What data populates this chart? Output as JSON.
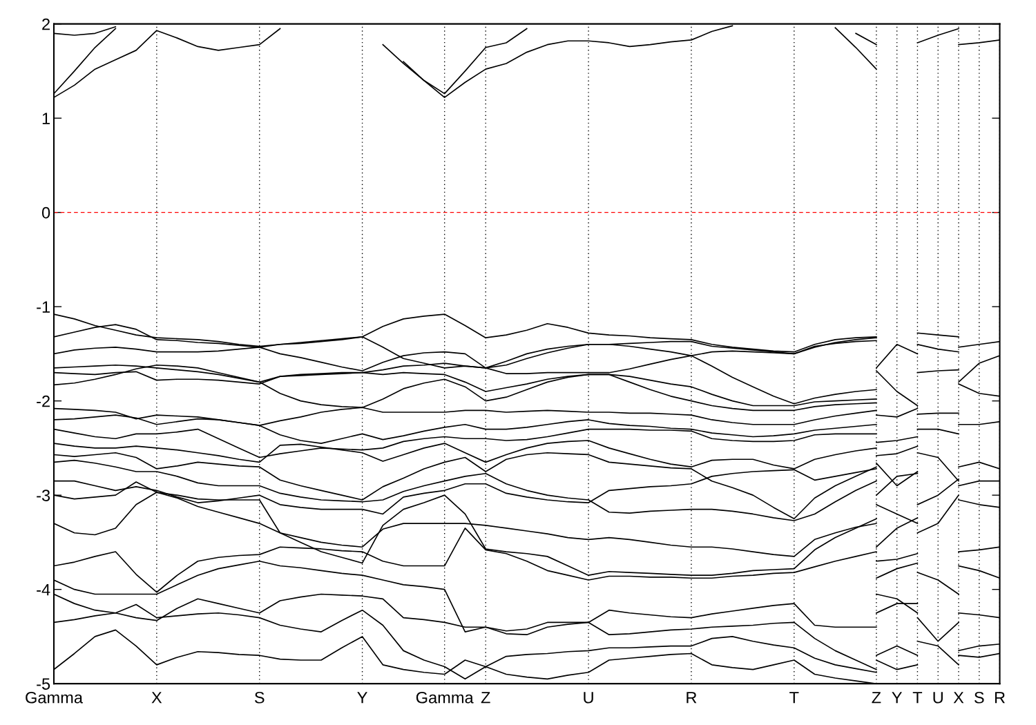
{
  "chart_data": {
    "type": "line",
    "categories": [
      "Gamma",
      null,
      null,
      null,
      null,
      "X",
      null,
      null,
      null,
      null,
      "S",
      null,
      null,
      null,
      null,
      "Y",
      null,
      null,
      null,
      "Gamma",
      null,
      "Z",
      null,
      null,
      null,
      null,
      "U",
      null,
      null,
      null,
      null,
      "R",
      null,
      null,
      null,
      null,
      "T",
      null,
      null,
      null,
      "Z",
      "Y",
      "T",
      "U",
      "X",
      "S",
      "R"
    ],
    "ylim": [
      -5,
      2
    ],
    "yticks": [
      -5,
      -4,
      -3,
      -2,
      -1,
      0,
      1,
      2
    ],
    "grid": "x",
    "marker": "none",
    "line_style": "solid",
    "ref_lines": [
      {
        "axis": "y",
        "value": 0,
        "color": "#ff0000",
        "line_style": "dashed",
        "label": null
      }
    ],
    "series": [
      {
        "color": "#000000",
        "values": [
          1.22,
          1.35,
          1.52,
          1.62,
          1.72,
          1.93,
          1.85,
          1.76,
          1.72,
          1.75,
          1.78,
          1.95,
          null,
          null,
          null,
          null,
          null,
          1.6,
          1.4,
          1.22,
          1.38,
          1.52,
          1.58,
          1.7,
          1.78,
          1.82,
          1.82,
          1.8,
          1.76,
          1.78,
          1.81,
          1.83,
          1.92,
          1.98,
          null,
          null,
          null,
          null,
          1.96,
          1.75,
          1.52,
          null,
          1.8,
          1.88,
          1.95,
          null,
          null
        ]
      },
      {
        "color": "#000000",
        "values": [
          1.26,
          1.5,
          1.75,
          1.95,
          null,
          null,
          null,
          null,
          null,
          null,
          null,
          null,
          null,
          null,
          null,
          null,
          1.78,
          1.58,
          1.4,
          1.26,
          1.5,
          1.75,
          1.8,
          1.95,
          null,
          null,
          null,
          null,
          null,
          null,
          null,
          null,
          null,
          null,
          null,
          null,
          null,
          null,
          null,
          1.9,
          1.78,
          null,
          null,
          null,
          null,
          null,
          null
        ]
      },
      {
        "color": "#000000",
        "values": [
          1.9,
          1.88,
          1.9,
          1.97,
          null,
          null,
          null,
          null,
          null,
          null,
          null,
          null,
          null,
          null,
          null,
          null,
          null,
          null,
          null,
          null,
          null,
          null,
          null,
          null,
          null,
          null,
          null,
          null,
          null,
          null,
          null,
          null,
          null,
          null,
          null,
          null,
          null,
          null,
          null,
          null,
          null,
          null,
          null,
          null,
          null,
          null,
          null
        ]
      },
      {
        "color": "#000000",
        "values": [
          -1.08,
          -1.13,
          -1.2,
          -1.25,
          -1.3,
          -1.33,
          -1.34,
          -1.35,
          -1.37,
          -1.4,
          -1.42,
          -1.4,
          -1.38,
          -1.36,
          -1.34,
          -1.32,
          -1.21,
          -1.13,
          -1.1,
          -1.08,
          -1.2,
          -1.33,
          -1.3,
          -1.25,
          -1.18,
          -1.22,
          -1.28,
          -1.3,
          -1.31,
          -1.33,
          -1.34,
          -1.35,
          -1.4,
          -1.43,
          -1.45,
          -1.47,
          -1.48,
          -1.4,
          -1.35,
          -1.33,
          -1.32,
          null,
          -1.28,
          -1.3,
          -1.32,
          null,
          null
        ]
      },
      {
        "color": "#000000",
        "values": [
          -1.32,
          -1.27,
          -1.22,
          -1.19,
          -1.24,
          -1.35,
          -1.36,
          -1.38,
          -1.39,
          -1.41,
          -1.43,
          -1.5,
          -1.54,
          -1.59,
          -1.64,
          -1.68,
          -1.59,
          -1.52,
          -1.49,
          -1.48,
          -1.5,
          -1.65,
          -1.62,
          -1.55,
          -1.49,
          -1.44,
          -1.4,
          -1.4,
          -1.39,
          -1.38,
          -1.37,
          -1.37,
          -1.42,
          -1.44,
          -1.46,
          -1.48,
          -1.5,
          -1.43,
          -1.38,
          -1.35,
          -1.33,
          null,
          -1.4,
          -1.45,
          -1.48,
          null,
          null
        ]
      },
      {
        "color": "#000000",
        "values": [
          -1.5,
          -1.46,
          -1.44,
          -1.43,
          -1.45,
          -1.48,
          -1.48,
          -1.48,
          -1.47,
          -1.45,
          -1.43,
          -1.4,
          -1.39,
          -1.37,
          -1.35,
          -1.32,
          -1.43,
          -1.55,
          -1.6,
          -1.65,
          -1.63,
          -1.65,
          -1.58,
          -1.5,
          -1.45,
          -1.42,
          -1.4,
          -1.4,
          -1.42,
          -1.45,
          -1.48,
          -1.52,
          -1.63,
          -1.75,
          -1.85,
          -1.95,
          -2.03,
          -1.97,
          -1.93,
          -1.9,
          -1.88,
          null,
          -1.7,
          -1.68,
          -1.67,
          null,
          null
        ]
      },
      {
        "color": "#000000",
        "values": [
          -1.65,
          -1.64,
          -1.63,
          -1.62,
          -1.63,
          -1.65,
          -1.67,
          -1.69,
          -1.72,
          -1.76,
          -1.8,
          -1.74,
          -1.73,
          -1.72,
          -1.71,
          -1.7,
          -1.67,
          -1.63,
          -1.62,
          -1.6,
          -1.63,
          -1.65,
          -1.71,
          -1.71,
          -1.7,
          -1.7,
          -1.7,
          -1.7,
          -1.66,
          -1.61,
          -1.56,
          -1.52,
          -1.48,
          -1.47,
          -1.48,
          -1.49,
          -1.5,
          -1.42,
          -1.39,
          -1.37,
          -1.36,
          null,
          null,
          null,
          null,
          null,
          null
        ]
      },
      {
        "color": "#000000",
        "values": [
          -1.7,
          -1.71,
          -1.72,
          -1.7,
          -1.69,
          -1.78,
          -1.77,
          -1.77,
          -1.78,
          -1.8,
          -1.82,
          -1.74,
          -1.72,
          -1.71,
          -1.7,
          -1.7,
          -1.72,
          -1.7,
          -1.71,
          -1.72,
          -1.8,
          -1.9,
          -1.86,
          -1.82,
          -1.77,
          -1.74,
          -1.72,
          -1.72,
          -1.74,
          -1.78,
          -1.82,
          -1.85,
          -1.93,
          -2.0,
          -2.05,
          -2.05,
          -2.05,
          -2.01,
          -2.0,
          -1.99,
          -1.98,
          null,
          null,
          null,
          null,
          null,
          null
        ]
      },
      {
        "color": "#000000",
        "values": [
          -1.83,
          -1.81,
          -1.77,
          -1.72,
          -1.66,
          -1.62,
          -1.63,
          -1.65,
          -1.7,
          -1.75,
          -1.8,
          -1.92,
          -2.0,
          -2.04,
          -2.06,
          -2.07,
          -1.98,
          -1.87,
          -1.81,
          -1.77,
          -1.85,
          -2.0,
          -1.96,
          -1.88,
          -1.8,
          -1.75,
          -1.72,
          -1.72,
          -1.8,
          -1.88,
          -1.95,
          -2.0,
          -2.05,
          -2.08,
          -2.1,
          -2.1,
          -2.1,
          -2.06,
          -2.04,
          -2.03,
          -2.02,
          null,
          null,
          null,
          null,
          null,
          null
        ]
      },
      {
        "color": "#000000",
        "values": [
          -2.08,
          -2.09,
          -2.1,
          -2.12,
          -2.19,
          -2.15,
          -2.16,
          -2.17,
          -2.2,
          -2.23,
          -2.26,
          -2.21,
          -2.17,
          -2.12,
          -2.09,
          -2.07,
          -2.12,
          -2.12,
          -2.12,
          -2.12,
          -2.1,
          -2.1,
          -2.12,
          -2.11,
          -2.1,
          -2.11,
          -2.12,
          -2.12,
          -2.13,
          -2.13,
          -2.14,
          -2.15,
          -2.2,
          -2.23,
          -2.25,
          -2.25,
          -2.25,
          -2.2,
          -2.16,
          -2.13,
          -2.1,
          null,
          -2.14,
          -2.13,
          -2.13,
          null,
          null
        ]
      },
      {
        "color": "#000000",
        "values": [
          -2.2,
          -2.19,
          -2.17,
          -2.15,
          -2.18,
          -2.25,
          -2.22,
          -2.19,
          -2.2,
          -2.23,
          -2.26,
          -2.36,
          -2.42,
          -2.45,
          -2.4,
          -2.35,
          -2.41,
          -2.37,
          -2.32,
          -2.28,
          -2.25,
          -2.3,
          -2.3,
          -2.28,
          -2.25,
          -2.22,
          -2.2,
          -2.24,
          -2.26,
          -2.27,
          -2.29,
          -2.3,
          -2.34,
          -2.36,
          -2.38,
          -2.37,
          -2.35,
          -2.31,
          -2.29,
          -2.27,
          -2.25,
          null,
          -2.3,
          -2.3,
          -2.35,
          null,
          null
        ]
      },
      {
        "color": "#000000",
        "values": [
          -2.3,
          -2.34,
          -2.38,
          -2.4,
          -2.35,
          -2.35,
          -2.33,
          -2.3,
          -2.4,
          -2.5,
          -2.6,
          -2.56,
          -2.53,
          -2.5,
          -2.51,
          -2.52,
          -2.5,
          -2.43,
          -2.4,
          -2.38,
          -2.4,
          -2.4,
          -2.42,
          -2.41,
          -2.38,
          -2.34,
          -2.3,
          -2.3,
          -2.3,
          -2.31,
          -2.31,
          -2.32,
          -2.4,
          -2.42,
          -2.43,
          -2.43,
          -2.42,
          -2.36,
          -2.35,
          -2.35,
          -2.35,
          null,
          -2.55,
          -2.6,
          -2.85,
          null,
          null
        ]
      },
      {
        "color": "#000000",
        "values": [
          -2.45,
          -2.48,
          -2.5,
          -2.5,
          -2.48,
          -2.5,
          -2.52,
          -2.55,
          -2.58,
          -2.62,
          -2.65,
          -2.47,
          -2.46,
          -2.49,
          -2.52,
          -2.55,
          -2.64,
          -2.57,
          -2.5,
          -2.45,
          -2.55,
          -2.65,
          -2.57,
          -2.5,
          -2.45,
          -2.43,
          -2.42,
          -2.5,
          -2.56,
          -2.62,
          -2.67,
          -2.7,
          -2.63,
          -2.62,
          -2.62,
          -2.68,
          -2.72,
          -2.62,
          -2.57,
          -2.53,
          -2.5,
          null,
          -3.1,
          -3.0,
          -2.83,
          null,
          null
        ]
      },
      {
        "color": "#000000",
        "values": [
          -2.57,
          -2.59,
          -2.57,
          -2.55,
          -2.6,
          -2.72,
          -2.69,
          -2.65,
          -2.67,
          -2.69,
          -2.7,
          -2.84,
          -2.9,
          -2.95,
          -3.0,
          -3.05,
          -2.91,
          -2.82,
          -2.72,
          -2.65,
          -2.6,
          -2.75,
          -2.62,
          -2.57,
          -2.55,
          -2.56,
          -2.57,
          -2.65,
          -2.67,
          -2.69,
          -2.71,
          -2.72,
          -2.85,
          -2.92,
          -3.0,
          -3.13,
          -3.25,
          -3.03,
          -2.9,
          -2.8,
          -2.7,
          null,
          -3.4,
          -3.3,
          -3.0,
          null,
          null
        ]
      },
      {
        "color": "#000000",
        "values": [
          -2.65,
          -2.63,
          -2.66,
          -2.7,
          -2.75,
          -2.75,
          -2.8,
          -2.87,
          -2.9,
          -2.9,
          -2.9,
          -2.98,
          -3.02,
          -3.05,
          -3.06,
          -3.07,
          -3.05,
          -2.96,
          -2.9,
          -2.85,
          -2.8,
          -2.77,
          -2.88,
          -2.95,
          -3.0,
          -3.03,
          -3.05,
          -3.18,
          -3.19,
          -3.17,
          -3.16,
          -3.15,
          -3.15,
          -3.17,
          -3.2,
          -3.24,
          -3.27,
          -3.2,
          -3.07,
          -2.95,
          -2.85,
          null,
          null,
          null,
          null,
          null,
          null
        ]
      },
      {
        "color": "#000000",
        "values": [
          -2.85,
          -2.85,
          -2.9,
          -2.95,
          -2.91,
          -2.95,
          -3.02,
          -3.08,
          -3.06,
          -3.03,
          -3.0,
          -3.1,
          -3.13,
          -3.15,
          -3.15,
          -3.15,
          -3.2,
          -3.02,
          -2.98,
          -2.95,
          -2.88,
          -2.88,
          -2.98,
          -3.02,
          -3.05,
          -3.07,
          -3.08,
          -2.95,
          -2.93,
          -2.91,
          -2.9,
          -2.88,
          -2.8,
          -2.77,
          -2.75,
          -2.74,
          -2.73,
          -2.84,
          -2.8,
          -2.76,
          -2.72,
          null,
          null,
          null,
          null,
          null,
          null
        ]
      },
      {
        "color": "#000000",
        "values": [
          -3.0,
          -3.04,
          -3.02,
          -3.0,
          -2.86,
          -2.97,
          -3.03,
          -3.12,
          -3.18,
          -3.24,
          -3.3,
          -3.4,
          -3.45,
          -3.5,
          -3.53,
          -3.55,
          -3.36,
          -3.3,
          -3.3,
          -3.3,
          -3.3,
          -3.32,
          -3.35,
          -3.38,
          -3.41,
          -3.45,
          -3.47,
          -3.45,
          -3.47,
          -3.5,
          -3.53,
          -3.55,
          -3.55,
          -3.57,
          -3.6,
          -3.63,
          -3.65,
          -3.47,
          -3.4,
          -3.34,
          -3.3,
          null,
          null,
          null,
          null,
          null,
          null
        ]
      },
      {
        "color": "#000000",
        "values": [
          -3.3,
          -3.4,
          -3.42,
          -3.35,
          -3.1,
          -2.97,
          -3.0,
          -3.04,
          -3.05,
          -3.05,
          -3.05,
          -3.4,
          -3.5,
          -3.6,
          -3.66,
          -3.72,
          -3.32,
          -3.15,
          -3.08,
          -3.0,
          -3.2,
          -3.57,
          -3.6,
          -3.62,
          -3.65,
          -3.75,
          -3.85,
          -3.81,
          -3.82,
          -3.83,
          -3.84,
          -3.85,
          -3.85,
          -3.83,
          -3.8,
          -3.79,
          -3.78,
          -3.58,
          -3.45,
          -3.35,
          -3.25,
          null,
          null,
          null,
          null,
          null,
          null
        ]
      },
      {
        "color": "#000000",
        "values": [
          -3.75,
          -3.71,
          -3.65,
          -3.6,
          -3.84,
          -4.03,
          -3.85,
          -3.7,
          -3.66,
          -3.64,
          -3.63,
          -3.55,
          -3.56,
          -3.57,
          -3.59,
          -3.6,
          -3.7,
          -3.75,
          -3.75,
          -3.75,
          -3.35,
          -3.58,
          -3.62,
          -3.7,
          -3.8,
          -3.85,
          -3.9,
          -3.86,
          -3.86,
          -3.87,
          -3.87,
          -3.88,
          -3.88,
          -3.86,
          -3.85,
          -3.83,
          -3.82,
          -3.76,
          -3.7,
          -3.65,
          -3.6,
          null,
          -3.82,
          -3.9,
          -4.05,
          null,
          null
        ]
      },
      {
        "color": "#000000",
        "values": [
          -3.9,
          -4.0,
          -4.05,
          -4.05,
          -4.05,
          -4.05,
          -3.95,
          -3.85,
          -3.78,
          -3.74,
          -3.7,
          -3.75,
          -3.77,
          -3.8,
          -3.83,
          -3.85,
          -3.9,
          -3.95,
          -3.97,
          -4.0,
          -4.45,
          -4.4,
          -4.47,
          -4.48,
          -4.4,
          -4.37,
          -4.35,
          -4.22,
          -4.25,
          -4.27,
          -4.29,
          -4.3,
          -4.26,
          -4.23,
          -4.2,
          -4.17,
          -4.15,
          -4.38,
          -4.4,
          -4.4,
          -4.4,
          null,
          -4.3,
          -4.55,
          -4.35,
          null,
          null
        ]
      },
      {
        "color": "#000000",
        "values": [
          -4.05,
          -4.15,
          -4.22,
          -4.25,
          -4.3,
          -4.33,
          -4.2,
          -4.1,
          -4.15,
          -4.2,
          -4.25,
          -4.12,
          -4.08,
          -4.05,
          -4.06,
          -4.07,
          -4.1,
          -4.3,
          -4.32,
          -4.35,
          -4.4,
          -4.4,
          -4.44,
          -4.42,
          -4.35,
          -4.35,
          -4.35,
          -4.48,
          -4.47,
          -4.45,
          -4.43,
          -4.42,
          -4.4,
          -4.39,
          -4.38,
          -4.36,
          -4.35,
          -4.52,
          -4.65,
          -4.75,
          -4.85,
          null,
          null,
          null,
          null,
          null,
          null
        ]
      },
      {
        "color": "#000000",
        "values": [
          -4.35,
          -4.32,
          -4.28,
          -4.25,
          -4.16,
          -4.3,
          -4.28,
          -4.26,
          -4.25,
          -4.27,
          -4.3,
          -4.38,
          -4.42,
          -4.45,
          -4.33,
          -4.22,
          -4.38,
          -4.65,
          -4.75,
          -4.82,
          -4.95,
          -4.82,
          -4.71,
          -4.69,
          -4.68,
          -4.66,
          -4.65,
          -4.62,
          -4.62,
          -4.61,
          -4.6,
          -4.6,
          -4.52,
          -4.5,
          -4.55,
          -4.59,
          -4.62,
          -4.73,
          -4.8,
          -4.84,
          -4.88,
          null,
          -4.55,
          -4.6,
          -4.8,
          null,
          null
        ]
      },
      {
        "color": "#000000",
        "values": [
          -4.85,
          -4.68,
          -4.5,
          -4.43,
          -4.6,
          -4.8,
          -4.72,
          -4.66,
          -4.67,
          -4.69,
          -4.7,
          -4.74,
          -4.75,
          -4.75,
          -4.62,
          -4.5,
          -4.8,
          -4.85,
          -4.88,
          -4.9,
          -4.75,
          -4.82,
          -4.9,
          -4.93,
          -4.95,
          -4.91,
          -4.88,
          -4.75,
          -4.73,
          -4.71,
          -4.69,
          -4.68,
          -4.8,
          -4.83,
          -4.85,
          -4.8,
          -4.75,
          -4.9,
          -4.94,
          -4.97,
          -5.0,
          null,
          null,
          null,
          null,
          null,
          null
        ]
      },
      {
        "color": "#000000",
        "values": [
          null,
          null,
          null,
          null,
          null,
          null,
          null,
          null,
          null,
          null,
          null,
          null,
          null,
          null,
          null,
          null,
          null,
          null,
          null,
          null,
          null,
          null,
          null,
          null,
          null,
          null,
          null,
          null,
          null,
          null,
          null,
          null,
          null,
          null,
          null,
          null,
          null,
          null,
          null,
          null,
          -1.65,
          -1.4,
          -1.5,
          null,
          -1.43,
          -1.4,
          -1.37
        ]
      },
      {
        "color": "#000000",
        "values": [
          null,
          null,
          null,
          null,
          null,
          null,
          null,
          null,
          null,
          null,
          null,
          null,
          null,
          null,
          null,
          null,
          null,
          null,
          null,
          null,
          null,
          null,
          null,
          null,
          null,
          null,
          null,
          null,
          null,
          null,
          null,
          null,
          null,
          null,
          null,
          null,
          null,
          null,
          null,
          null,
          -1.68,
          -1.9,
          -2.05,
          null,
          -1.8,
          -1.6,
          -1.52
        ]
      },
      {
        "color": "#000000",
        "values": [
          null,
          null,
          null,
          null,
          null,
          null,
          null,
          null,
          null,
          null,
          null,
          null,
          null,
          null,
          null,
          null,
          null,
          null,
          null,
          null,
          null,
          null,
          null,
          null,
          null,
          null,
          null,
          null,
          null,
          null,
          null,
          null,
          null,
          null,
          null,
          null,
          null,
          null,
          null,
          null,
          -2.15,
          -2.17,
          -2.08,
          null,
          -1.82,
          -1.92,
          -1.95
        ]
      },
      {
        "color": "#000000",
        "values": [
          null,
          null,
          null,
          null,
          null,
          null,
          null,
          null,
          null,
          null,
          null,
          null,
          null,
          null,
          null,
          null,
          null,
          null,
          null,
          null,
          null,
          null,
          null,
          null,
          null,
          null,
          null,
          null,
          null,
          null,
          null,
          null,
          null,
          null,
          null,
          null,
          null,
          null,
          null,
          null,
          -2.44,
          -2.42,
          -2.38,
          null,
          -2.25,
          -2.25,
          -2.22
        ]
      },
      {
        "color": "#000000",
        "values": [
          null,
          null,
          null,
          null,
          null,
          null,
          null,
          null,
          null,
          null,
          null,
          null,
          null,
          null,
          null,
          null,
          null,
          null,
          null,
          null,
          null,
          null,
          null,
          null,
          null,
          null,
          null,
          null,
          null,
          null,
          null,
          null,
          null,
          null,
          null,
          null,
          null,
          null,
          null,
          null,
          -2.58,
          -2.56,
          -2.48,
          null,
          -2.7,
          -2.65,
          -2.72
        ]
      },
      {
        "color": "#000000",
        "values": [
          null,
          null,
          null,
          null,
          null,
          null,
          null,
          null,
          null,
          null,
          null,
          null,
          null,
          null,
          null,
          null,
          null,
          null,
          null,
          null,
          null,
          null,
          null,
          null,
          null,
          null,
          null,
          null,
          null,
          null,
          null,
          null,
          null,
          null,
          null,
          null,
          null,
          null,
          null,
          null,
          -2.66,
          -2.9,
          -2.75,
          null,
          -2.9,
          -2.85,
          -2.85
        ]
      },
      {
        "color": "#000000",
        "values": [
          null,
          null,
          null,
          null,
          null,
          null,
          null,
          null,
          null,
          null,
          null,
          null,
          null,
          null,
          null,
          null,
          null,
          null,
          null,
          null,
          null,
          null,
          null,
          null,
          null,
          null,
          null,
          null,
          null,
          null,
          null,
          null,
          null,
          null,
          null,
          null,
          null,
          null,
          null,
          null,
          -3.0,
          -2.8,
          -2.77,
          null,
          -3.05,
          -3.1,
          -3.13
        ]
      },
      {
        "color": "#000000",
        "values": [
          null,
          null,
          null,
          null,
          null,
          null,
          null,
          null,
          null,
          null,
          null,
          null,
          null,
          null,
          null,
          null,
          null,
          null,
          null,
          null,
          null,
          null,
          null,
          null,
          null,
          null,
          null,
          null,
          null,
          null,
          null,
          null,
          null,
          null,
          null,
          null,
          null,
          null,
          null,
          null,
          -3.1,
          -3.2,
          -3.3,
          null,
          -3.6,
          -3.58,
          -3.55
        ]
      },
      {
        "color": "#000000",
        "values": [
          null,
          null,
          null,
          null,
          null,
          null,
          null,
          null,
          null,
          null,
          null,
          null,
          null,
          null,
          null,
          null,
          null,
          null,
          null,
          null,
          null,
          null,
          null,
          null,
          null,
          null,
          null,
          null,
          null,
          null,
          null,
          null,
          null,
          null,
          null,
          null,
          null,
          null,
          null,
          null,
          -3.55,
          -3.35,
          -3.24,
          null,
          -3.75,
          -3.8,
          -3.88
        ]
      },
      {
        "color": "#000000",
        "values": [
          null,
          null,
          null,
          null,
          null,
          null,
          null,
          null,
          null,
          null,
          null,
          null,
          null,
          null,
          null,
          null,
          null,
          null,
          null,
          null,
          null,
          null,
          null,
          null,
          null,
          null,
          null,
          null,
          null,
          null,
          null,
          null,
          null,
          null,
          null,
          null,
          null,
          null,
          null,
          null,
          -3.7,
          -3.68,
          -3.62,
          null,
          -4.25,
          -4.27,
          -4.3
        ]
      },
      {
        "color": "#000000",
        "values": [
          null,
          null,
          null,
          null,
          null,
          null,
          null,
          null,
          null,
          null,
          null,
          null,
          null,
          null,
          null,
          null,
          null,
          null,
          null,
          null,
          null,
          null,
          null,
          null,
          null,
          null,
          null,
          null,
          null,
          null,
          null,
          null,
          null,
          null,
          null,
          null,
          null,
          null,
          null,
          null,
          -3.88,
          -3.78,
          -3.72,
          null,
          -4.65,
          -4.6,
          -4.58
        ]
      },
      {
        "color": "#000000",
        "values": [
          null,
          null,
          null,
          null,
          null,
          null,
          null,
          null,
          null,
          null,
          null,
          null,
          null,
          null,
          null,
          null,
          null,
          null,
          null,
          null,
          null,
          null,
          null,
          null,
          null,
          null,
          null,
          null,
          null,
          null,
          null,
          null,
          null,
          null,
          null,
          null,
          null,
          null,
          null,
          null,
          -4.05,
          -4.1,
          -4.25,
          null,
          -4.7,
          -4.72,
          -4.68
        ]
      },
      {
        "color": "#000000",
        "values": [
          null,
          null,
          null,
          null,
          null,
          null,
          null,
          null,
          null,
          null,
          null,
          null,
          null,
          null,
          null,
          null,
          null,
          null,
          null,
          null,
          null,
          null,
          null,
          null,
          null,
          null,
          null,
          null,
          null,
          null,
          null,
          null,
          null,
          null,
          null,
          null,
          null,
          null,
          null,
          null,
          -4.25,
          -4.15,
          -4.15,
          null,
          1.78,
          1.8,
          1.83
        ]
      },
      {
        "color": "#000000",
        "values": [
          null,
          null,
          null,
          null,
          null,
          null,
          null,
          null,
          null,
          null,
          null,
          null,
          null,
          null,
          null,
          null,
          null,
          null,
          null,
          null,
          null,
          null,
          null,
          null,
          null,
          null,
          null,
          null,
          null,
          null,
          null,
          null,
          null,
          null,
          null,
          null,
          null,
          null,
          null,
          null,
          -4.7,
          -4.6,
          -4.7,
          null,
          null,
          null,
          null
        ]
      },
      {
        "color": "#000000",
        "values": [
          null,
          null,
          null,
          null,
          null,
          null,
          null,
          null,
          null,
          null,
          null,
          null,
          null,
          null,
          null,
          null,
          null,
          null,
          null,
          null,
          null,
          null,
          null,
          null,
          null,
          null,
          null,
          null,
          null,
          null,
          null,
          null,
          null,
          null,
          null,
          null,
          null,
          null,
          null,
          null,
          -4.75,
          -4.85,
          -4.8,
          null,
          null,
          null,
          null
        ]
      }
    ]
  }
}
